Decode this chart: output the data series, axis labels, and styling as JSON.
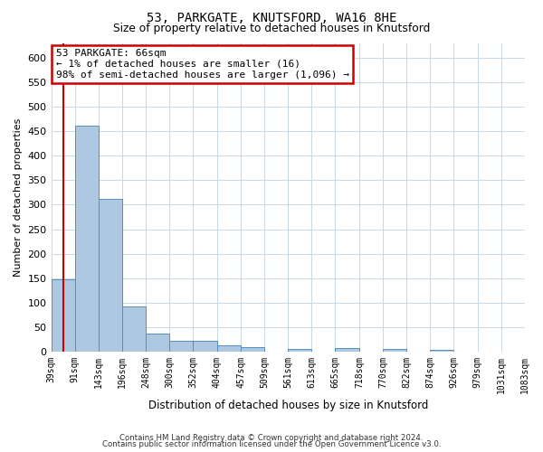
{
  "title": "53, PARKGATE, KNUTSFORD, WA16 8HE",
  "subtitle": "Size of property relative to detached houses in Knutsford",
  "xlabel": "Distribution of detached houses by size in Knutsford",
  "ylabel": "Number of detached properties",
  "bin_edges": [
    39,
    91,
    143,
    196,
    248,
    300,
    352,
    404,
    457,
    509,
    561,
    613,
    665,
    718,
    770,
    822,
    874,
    926,
    979,
    1031,
    1083
  ],
  "bin_labels": [
    "39sqm",
    "91sqm",
    "143sqm",
    "196sqm",
    "248sqm",
    "300sqm",
    "352sqm",
    "404sqm",
    "457sqm",
    "509sqm",
    "561sqm",
    "613sqm",
    "665sqm",
    "718sqm",
    "770sqm",
    "822sqm",
    "874sqm",
    "926sqm",
    "979sqm",
    "1031sqm",
    "1083sqm"
  ],
  "bar_heights": [
    148,
    462,
    312,
    93,
    37,
    22,
    22,
    13,
    9,
    0,
    5,
    0,
    7,
    0,
    5,
    0,
    4,
    0,
    0,
    0
  ],
  "bar_color": "#adc8e0",
  "bar_edge_color": "#5090c0",
  "property_sqm": 66,
  "marker_color": "#cc0000",
  "annotation_line1": "53 PARKGATE: 66sqm",
  "annotation_line2": "← 1% of detached houses are smaller (16)",
  "annotation_line3": "98% of semi-detached houses are larger (1,096) →",
  "annotation_box_color": "#ffffff",
  "annotation_border_color": "#cc0000",
  "ylim": [
    0,
    630
  ],
  "yticks": [
    0,
    50,
    100,
    150,
    200,
    250,
    300,
    350,
    400,
    450,
    500,
    550,
    600
  ],
  "background_color": "#ffffff",
  "grid_color": "#c8d8e8",
  "footer_line1": "Contains HM Land Registry data © Crown copyright and database right 2024.",
  "footer_line2": "Contains public sector information licensed under the Open Government Licence v3.0."
}
